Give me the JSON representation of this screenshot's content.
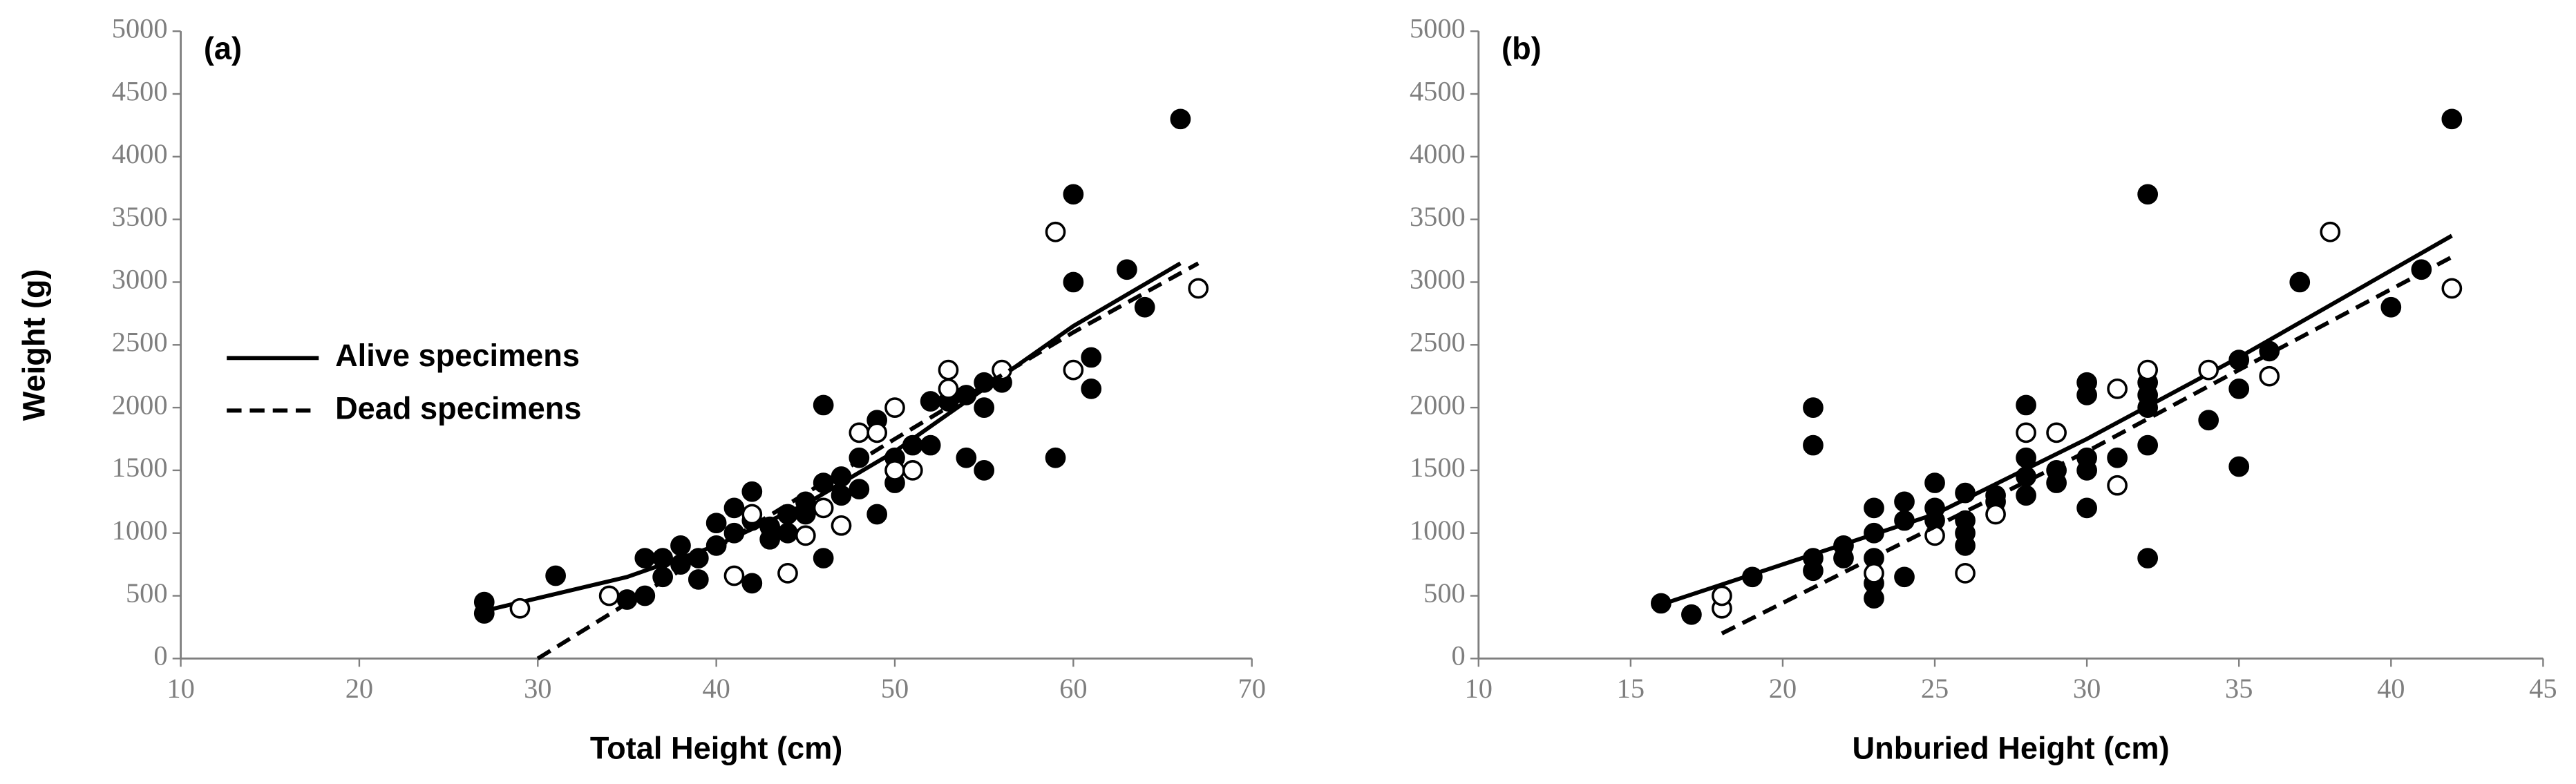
{
  "chart_data": [
    {
      "type": "scatter",
      "label": "(a)",
      "xlabel": "Total Height (cm)",
      "ylabel": "Weight (g)",
      "xlim": [
        10,
        70
      ],
      "xticks": [
        10,
        20,
        30,
        40,
        50,
        60,
        70
      ],
      "ylim": [
        0,
        5000
      ],
      "yticks": [
        0,
        500,
        1000,
        1500,
        2000,
        2500,
        3000,
        3500,
        4000,
        4500,
        5000
      ],
      "legend": "center left",
      "series": [
        {
          "name": "Alive specimens",
          "marker": "filled",
          "color": "#000000",
          "line": "solid",
          "x": [
            27,
            27,
            31,
            35,
            36,
            36,
            37,
            37,
            38,
            38,
            39,
            39,
            40,
            40,
            41,
            41,
            42,
            42,
            42,
            43,
            43,
            44,
            44,
            45,
            45,
            46,
            46,
            46,
            47,
            47,
            48,
            48,
            49,
            49,
            50,
            50,
            51,
            52,
            52,
            53,
            54,
            54,
            55,
            55,
            55,
            56,
            59,
            60,
            60,
            61,
            61,
            63,
            64,
            66
          ],
          "values": [
            450,
            360,
            660,
            470,
            500,
            800,
            650,
            800,
            750,
            900,
            630,
            800,
            900,
            1080,
            1000,
            1200,
            600,
            1330,
            1100,
            950,
            1050,
            1000,
            1150,
            1250,
            1150,
            800,
            1400,
            2020,
            1300,
            1450,
            1350,
            1600,
            1150,
            1900,
            1400,
            1600,
            1700,
            1700,
            2050,
            2050,
            1600,
            2100,
            1500,
            2000,
            2200,
            2200,
            1600,
            3000,
            3700,
            2150,
            2400,
            3100,
            2800,
            4300
          ],
          "trend": {
            "x": [
              27,
              35,
              40,
              45,
              50,
              55,
              60,
              66
            ],
            "values": [
              380,
              650,
              900,
              1230,
              1650,
              2150,
              2650,
              3150
            ]
          }
        },
        {
          "name": "Dead specimens",
          "marker": "open",
          "color": "#000000",
          "line": "dashed",
          "x": [
            29,
            34,
            41,
            42,
            44,
            45,
            46,
            47,
            48,
            49,
            50,
            50,
            51,
            53,
            53,
            56,
            59,
            60,
            67
          ],
          "values": [
            400,
            500,
            660,
            1150,
            680,
            980,
            1200,
            1060,
            1800,
            1800,
            2000,
            1500,
            1500,
            2300,
            2150,
            2300,
            3400,
            2300,
            2950
          ],
          "trend": {
            "x": [
              30,
              40,
              50,
              60,
              67
            ],
            "values": [
              0,
              880,
              1750,
              2600,
              3150
            ]
          }
        }
      ]
    },
    {
      "type": "scatter",
      "label": "(b)",
      "xlabel": "Unburied Height (cm)",
      "xlim": [
        10,
        45
      ],
      "xticks": [
        10,
        15,
        20,
        25,
        30,
        35,
        40,
        45
      ],
      "ylim": [
        0,
        5000
      ],
      "yticks": [
        0,
        500,
        1000,
        1500,
        2000,
        2500,
        3000,
        3500,
        4000,
        4500,
        5000
      ],
      "series": [
        {
          "marker": "filled",
          "color": "#000000",
          "line": "solid",
          "x": [
            16,
            17,
            19,
            21,
            21,
            21,
            21,
            22,
            22,
            23,
            23,
            23,
            23,
            23,
            24,
            24,
            24,
            25,
            25,
            25,
            26,
            26,
            26,
            26,
            27,
            27,
            28,
            28,
            28,
            28,
            29,
            29,
            30,
            30,
            30,
            30,
            30,
            31,
            32,
            32,
            32,
            32,
            32,
            32,
            34,
            35,
            35,
            35,
            36,
            37,
            40,
            41,
            42
          ],
          "values": [
            440,
            350,
            650,
            2000,
            1700,
            800,
            700,
            900,
            800,
            480,
            600,
            800,
            1000,
            1200,
            650,
            1100,
            1250,
            1200,
            1400,
            1100,
            900,
            1000,
            1100,
            1320,
            1300,
            1250,
            1300,
            1450,
            1600,
            2020,
            1400,
            1500,
            1200,
            1500,
            1600,
            2100,
            2200,
            1600,
            800,
            1700,
            2000,
            2100,
            2200,
            3700,
            1900,
            1530,
            2150,
            2380,
            2450,
            3000,
            2800,
            3100,
            4300
          ],
          "trend": {
            "x": [
              16,
              20,
              25,
              30,
              35,
              42
            ],
            "values": [
              430,
              750,
              1150,
              1750,
              2400,
              3370
            ]
          }
        },
        {
          "marker": "open",
          "color": "#000000",
          "line": "dashed",
          "x": [
            18,
            18,
            23,
            25,
            26,
            27,
            28,
            29,
            31,
            31,
            32,
            34,
            36,
            38,
            42
          ],
          "values": [
            400,
            500,
            680,
            980,
            680,
            1150,
            1800,
            1800,
            1380,
            2150,
            2300,
            2300,
            2250,
            3400,
            2950
          ],
          "trend": {
            "x": [
              18,
              25,
              30,
              35,
              42
            ],
            "values": [
              200,
              1050,
              1650,
              2300,
              3200
            ]
          }
        }
      ]
    }
  ]
}
